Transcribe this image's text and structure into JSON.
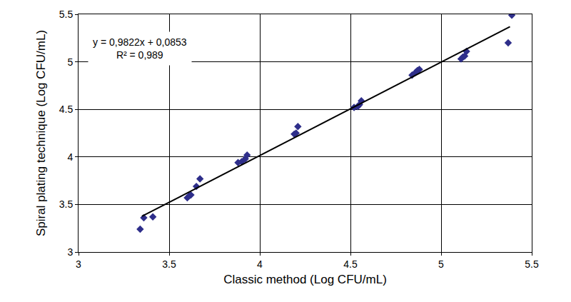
{
  "chart_data": {
    "type": "scatter",
    "x_label": "Classic method (Log CFU/mL)",
    "y_label": "Spiral plating technique (Log CFU/mL)",
    "annotations": [
      "y = 0,9822x + 0,0853",
      "R² = 0,989"
    ],
    "xlim": [
      3,
      5.5
    ],
    "ylim": [
      3,
      5.5
    ],
    "xticks": [
      3,
      3.5,
      4,
      4.5,
      5,
      5.5
    ],
    "yticks": [
      3,
      3.5,
      4,
      4.5,
      5,
      5.5
    ],
    "grid": true,
    "series": [
      {
        "type": "scatter",
        "marker": "diamond",
        "color": "#2e2e8a",
        "x": [
          3.34,
          3.36,
          3.41,
          3.6,
          3.61,
          3.62,
          3.65,
          3.67,
          3.88,
          3.9,
          3.92,
          3.93,
          4.19,
          4.2,
          4.21,
          4.52,
          4.54,
          4.55,
          4.56,
          4.84,
          4.86,
          4.87,
          4.88,
          5.11,
          5.12,
          5.13,
          5.14,
          5.37,
          5.39
        ],
        "values": [
          3.24,
          3.36,
          3.37,
          3.57,
          3.59,
          3.6,
          3.69,
          3.77,
          3.94,
          3.95,
          3.98,
          4.02,
          4.24,
          4.25,
          4.32,
          4.52,
          4.53,
          4.55,
          4.59,
          4.86,
          4.89,
          4.91,
          4.92,
          5.03,
          5.05,
          5.06,
          5.11,
          5.2,
          5.49
        ]
      },
      {
        "type": "line",
        "line_style": "solid",
        "color": "#000000",
        "x": [
          3.35,
          5.38
        ],
        "values": [
          3.376,
          5.37
        ]
      }
    ]
  }
}
